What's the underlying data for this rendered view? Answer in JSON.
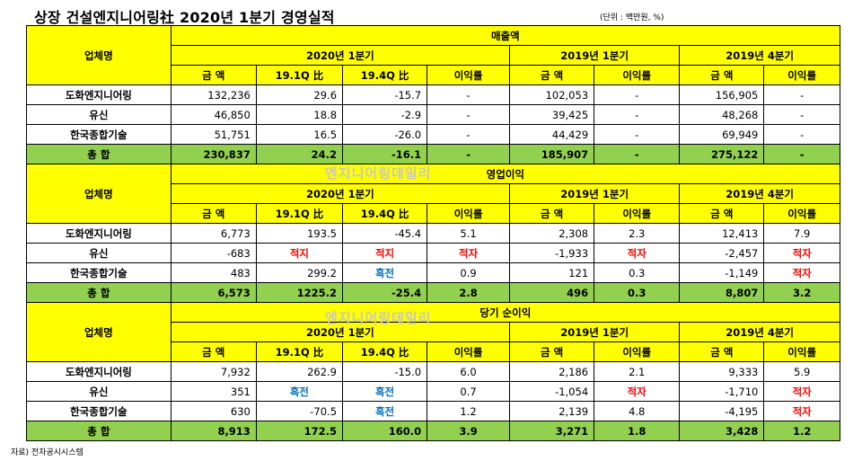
{
  "title": "상장 건설엔지니어링社 2020년 1분기 경영실적",
  "unit": "(단위 : 백만원, %)",
  "source": "자료) 전자공시시스템",
  "watermark": "엔지니어링데일리",
  "colors": {
    "header": "#ffff00",
    "total": "#92d050",
    "negative": "#ff0000",
    "positive": "#0070c0"
  },
  "header": {
    "company": "업체명",
    "p2020": "2020년 1분기",
    "p2019q1": "2019년 1분기",
    "p2019q4": "2019년 4분기",
    "amount": "금 액",
    "yoy": "19.1Q 比",
    "qoq": "19.4Q 比",
    "margin": "이익률"
  },
  "sections": [
    {
      "title": "매출액",
      "rows": [
        {
          "name": "도화엔지니어링",
          "v": [
            "132,236",
            "29.6",
            "-15.7",
            "-",
            "102,053",
            "-",
            "156,905",
            "-"
          ]
        },
        {
          "name": "유신",
          "v": [
            "46,850",
            "18.8",
            "-2.9",
            "-",
            "39,425",
            "-",
            "48,268",
            "-"
          ]
        },
        {
          "name": "한국종합기술",
          "v": [
            "51,751",
            "16.5",
            "-26.0",
            "-",
            "44,429",
            "-",
            "69,949",
            "-"
          ]
        }
      ],
      "total": {
        "name": "총 합",
        "v": [
          "230,837",
          "24.2",
          "-16.1",
          "-",
          "185,907",
          "-",
          "275,122",
          "-"
        ]
      }
    },
    {
      "title": "영업이익",
      "rows": [
        {
          "name": "도화엔지니어링",
          "v": [
            "6,773",
            "193.5",
            "-45.4",
            "5.1",
            "2,308",
            "2.3",
            "12,413",
            "7.9"
          ]
        },
        {
          "name": "유신",
          "v": [
            "-683",
            "적지",
            "적지",
            "적자",
            "-1,933",
            "적자",
            "-2,457",
            "적자"
          ]
        },
        {
          "name": "한국종합기술",
          "v": [
            "483",
            "299.2",
            "흑전",
            "0.9",
            "121",
            "0.3",
            "-1,149",
            "적자"
          ]
        }
      ],
      "total": {
        "name": "총 합",
        "v": [
          "6,573",
          "1225.2",
          "-25.4",
          "2.8",
          "496",
          "0.3",
          "8,807",
          "3.2"
        ]
      }
    },
    {
      "title": "당기 순이익",
      "rows": [
        {
          "name": "도화엔지니어링",
          "v": [
            "7,932",
            "262.9",
            "-15.0",
            "6.0",
            "2,186",
            "2.1",
            "9,333",
            "5.9"
          ]
        },
        {
          "name": "유신",
          "v": [
            "351",
            "흑전",
            "흑전",
            "0.7",
            "-1,054",
            "적자",
            "-1,710",
            "적자"
          ]
        },
        {
          "name": "한국종합기술",
          "v": [
            "630",
            "-70.5",
            "흑전",
            "1.2",
            "2,139",
            "4.8",
            "-4,195",
            "적자"
          ]
        }
      ],
      "total": {
        "name": "총 합",
        "v": [
          "8,913",
          "172.5",
          "160.0",
          "3.9",
          "3,271",
          "1.8",
          "3,428",
          "1.2"
        ]
      }
    }
  ]
}
